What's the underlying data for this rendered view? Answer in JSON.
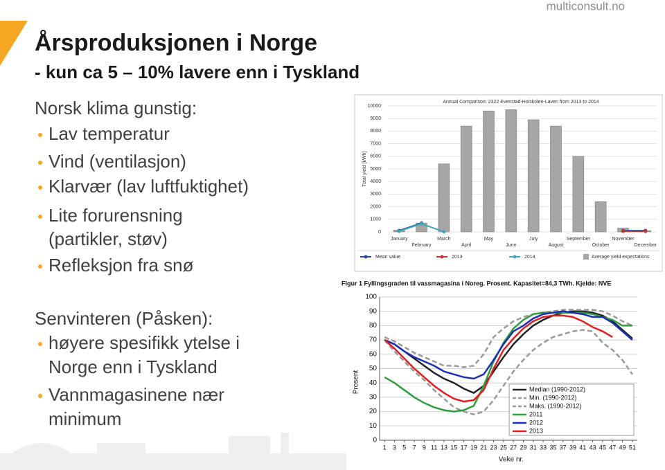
{
  "slide": {
    "source": "multiconsult.no",
    "heading": "Årsproduksjonen i Norge",
    "subheading": "- kun ca 5 – 10% lavere enn i Tyskland",
    "sections": [
      {
        "heading": "Norsk klima gunstig:",
        "bullets": [
          [
            "Lav temperatur"
          ],
          [
            "Vind (ventilasjon)"
          ],
          [
            "Klarvær (lav luftfuktighet)"
          ],
          [
            "Lite forurensning",
            "(partikler, støv)"
          ],
          [
            "Refleksjon fra snø"
          ]
        ]
      },
      {
        "heading": "Senvinteren (Påsken):",
        "bullets": [
          [
            "høyere spesifikk ytelse i",
            "Norge enn i Tyskland"
          ],
          [
            "Vannmagasinene nær",
            "minimum"
          ]
        ]
      }
    ]
  },
  "chart_data": [
    {
      "type": "bar",
      "title": "Annual Comparison: 2322 Evenstad-Hoiskolen-Laven from 2013 to 2014",
      "y_label": "Total yield [kWh]",
      "categories": [
        "January",
        "February",
        "March",
        "April",
        "May",
        "June",
        "July",
        "August",
        "September",
        "October",
        "November",
        "December"
      ],
      "series": [
        {
          "name": "Average yield expectations",
          "type": "bar",
          "color": "#a6a6a6",
          "values": [
            150,
            700,
            5400,
            8400,
            9600,
            9700,
            8900,
            8400,
            6000,
            2400,
            300,
            100
          ]
        },
        {
          "name": "Mean value",
          "type": "line",
          "color": "#1f4e9c",
          "values": [
            100,
            700,
            null,
            null,
            null,
            null,
            null,
            null,
            null,
            null,
            100,
            100
          ]
        },
        {
          "name": "2013",
          "type": "line",
          "color": "#c0392b",
          "values": [
            null,
            null,
            null,
            null,
            null,
            null,
            null,
            null,
            null,
            null,
            50,
            50
          ]
        },
        {
          "name": "2014",
          "type": "line",
          "color": "#3fa7b5",
          "values": [
            50,
            650,
            0,
            null,
            null,
            null,
            null,
            null,
            null,
            null,
            null,
            null
          ]
        }
      ],
      "ylim": [
        0,
        10000
      ],
      "yticks": [
        0,
        1000,
        2000,
        3000,
        4000,
        5000,
        6000,
        7000,
        8000,
        9000,
        10000
      ],
      "grid": true,
      "legend": "bottom"
    },
    {
      "type": "line",
      "title": "Figur 1 Fyllingsgraden til vassmagasina i Noreg. Prosent. Kapasitet=84,3 TWh. Kjelde: NVE",
      "y_label": "Prosent",
      "x_label": "Veke nr.",
      "x": [
        1,
        3,
        5,
        7,
        9,
        11,
        13,
        15,
        17,
        19,
        21,
        23,
        25,
        27,
        29,
        31,
        33,
        35,
        37,
        39,
        41,
        43,
        45,
        47,
        49,
        51
      ],
      "series": [
        {
          "name": "Median (1990-2012)",
          "color": "#222222",
          "dash": false,
          "values": [
            70,
            67,
            62,
            57,
            52,
            47,
            43,
            40,
            36,
            33,
            38,
            48,
            58,
            67,
            74,
            80,
            84,
            87,
            89,
            90,
            90,
            89,
            87,
            83,
            77,
            71
          ]
        },
        {
          "name": "Min. (1990-2012)",
          "color": "#999999",
          "dash": true,
          "values": [
            70,
            62,
            55,
            48,
            42,
            35,
            29,
            23,
            20,
            18,
            20,
            28,
            38,
            48,
            56,
            63,
            68,
            72,
            74,
            76,
            77,
            76,
            68,
            63,
            56,
            46
          ]
        },
        {
          "name": "Maks. (1990-2012)",
          "color": "#999999",
          "dash": true,
          "values": [
            72,
            69,
            65,
            61,
            58,
            55,
            52,
            52,
            51,
            52,
            60,
            72,
            78,
            83,
            86,
            88,
            89,
            90,
            91,
            91,
            91,
            91,
            90,
            87,
            83,
            80
          ]
        },
        {
          "name": "2011",
          "color": "#2e9e3e",
          "dash": false,
          "values": [
            44,
            40,
            35,
            30,
            26,
            23,
            21,
            20,
            21,
            24,
            38,
            55,
            68,
            78,
            84,
            88,
            89,
            89,
            89,
            89,
            89,
            88,
            86,
            84,
            80,
            80
          ]
        },
        {
          "name": "2012",
          "color": "#1c2fb8",
          "dash": false,
          "values": [
            70,
            67,
            62,
            58,
            55,
            52,
            48,
            46,
            44,
            43,
            46,
            56,
            67,
            76,
            80,
            85,
            88,
            89,
            90,
            89,
            88,
            86,
            86,
            82,
            76,
            70
          ]
        },
        {
          "name": "2013",
          "color": "#e02020",
          "dash": false,
          "values": [
            70,
            64,
            57,
            50,
            44,
            38,
            33,
            29,
            27,
            28,
            35,
            50,
            63,
            71,
            78,
            83,
            86,
            87,
            87,
            86,
            83,
            79,
            76,
            72,
            null,
            null
          ]
        }
      ],
      "xlim": [
        0,
        52
      ],
      "xticks": [
        1,
        3,
        5,
        7,
        9,
        11,
        13,
        15,
        17,
        19,
        21,
        23,
        25,
        27,
        29,
        31,
        33,
        35,
        37,
        39,
        41,
        43,
        45,
        47,
        49,
        51
      ],
      "ylim": [
        0,
        100
      ],
      "yticks": [
        0,
        10,
        20,
        30,
        40,
        50,
        60,
        70,
        80,
        90,
        100
      ],
      "grid": true,
      "legend": "lower right"
    }
  ]
}
